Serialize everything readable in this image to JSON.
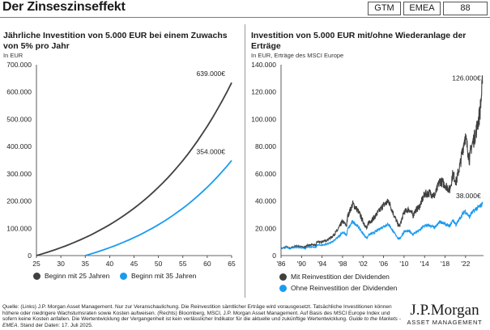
{
  "header": {
    "title": "Der Zinseszinseffekt",
    "tags": [
      "GTM",
      "EMEA",
      "88"
    ]
  },
  "colors": {
    "dark": "#404040",
    "blue": "#1a9bf0"
  },
  "chart_data": [
    {
      "type": "line",
      "title": "Jährliche Investition von 5.000 EUR bei einem Zuwachs von 5% pro Jahr",
      "subtitle": "In EUR",
      "xlim": [
        25,
        65
      ],
      "ylim": [
        0,
        700000
      ],
      "x_ticks": [
        "25",
        "30",
        "35",
        "40",
        "45",
        "50",
        "55",
        "60",
        "65"
      ],
      "y_ticks": [
        "0",
        "100.000",
        "200.000",
        "300.000",
        "400.000",
        "500.000",
        "600.000",
        "700.000"
      ],
      "series": [
        {
          "name": "Beginn mit 25 Jahren",
          "color": "#404040",
          "start_age": 25,
          "annual": 5000,
          "rate": 0.05,
          "end_label": "639.000€"
        },
        {
          "name": "Beginn mit 35 Jahren",
          "color": "#1a9bf0",
          "start_age": 35,
          "annual": 5000,
          "rate": 0.05,
          "end_label": "354.000€"
        }
      ],
      "annotations": [
        "639.000€",
        "354.000€"
      ]
    },
    {
      "type": "line",
      "title": "Investition von 5.000 EUR mit/ohne Wiederanlage der Erträge",
      "subtitle": "In EUR, Erträge des MSCI Europe",
      "xlim": [
        1986,
        2025.5
      ],
      "ylim": [
        0,
        140000
      ],
      "x_ticks": [
        "'86",
        "'90",
        "'94",
        "'98",
        "'02",
        "'06",
        "'10",
        "'14",
        "'18",
        "'22"
      ],
      "y_ticks": [
        "0",
        "20.000",
        "40.000",
        "60.000",
        "80.000",
        "100.000",
        "120.000",
        "140.000"
      ],
      "series": [
        {
          "name": "Mit Reinvestition der Dividenden",
          "color": "#404040",
          "x": [
            1986,
            1987,
            1987.8,
            1988,
            1989,
            1990,
            1990.8,
            1991,
            1992,
            1992.8,
            1993,
            1994,
            1995,
            1996,
            1997,
            1998,
            1998.8,
            1999,
            2000,
            2001,
            2002,
            2002.8,
            2003,
            2004,
            2005,
            2006,
            2007,
            2008,
            2008.9,
            2009.2,
            2010,
            2011,
            2011.8,
            2012,
            2013,
            2014,
            2015,
            2016,
            2017,
            2018,
            2018.9,
            2019.5,
            2020.2,
            2020.5,
            2021,
            2021.9,
            2022.8,
            2023,
            2024,
            2024.8,
            2025.3
          ],
          "y": [
            5000,
            6500,
            5200,
            6000,
            7000,
            6500,
            6000,
            7200,
            8000,
            7500,
            10000,
            10000,
            11500,
            14000,
            18500,
            25000,
            22000,
            29000,
            38000,
            33000,
            25000,
            19500,
            24000,
            27000,
            32000,
            37000,
            40000,
            30000,
            22000,
            22000,
            32000,
            34000,
            29000,
            32000,
            36000,
            45000,
            46000,
            44000,
            55000,
            52000,
            48000,
            60000,
            54000,
            60000,
            68000,
            88000,
            70000,
            78000,
            90000,
            105000,
            126000
          ],
          "end_label": "126.000€"
        },
        {
          "name": "Ohne Reinvestition der Dividenden",
          "color": "#1a9bf0",
          "x": [
            1986,
            1987,
            1987.8,
            1988,
            1989,
            1990,
            1990.8,
            1991,
            1992,
            1992.8,
            1993,
            1994,
            1995,
            1996,
            1997,
            1998,
            1998.8,
            1999,
            2000,
            2001,
            2002,
            2002.8,
            2003,
            2004,
            2005,
            2006,
            2007,
            2008,
            2008.9,
            2009.2,
            2010,
            2011,
            2011.8,
            2012,
            2013,
            2014,
            2015,
            2016,
            2017,
            2018,
            2018.9,
            2019.5,
            2020.2,
            2020.5,
            2021,
            2021.9,
            2022.8,
            2023,
            2024,
            2024.8,
            2025.3
          ],
          "y": [
            5000,
            6300,
            4800,
            5500,
            6200,
            5700,
            5200,
            6000,
            6500,
            6000,
            7800,
            7600,
            8500,
            10000,
            13000,
            17000,
            15000,
            19500,
            25000,
            21500,
            16000,
            12500,
            15000,
            16500,
            19000,
            21500,
            23000,
            17000,
            12500,
            12500,
            17500,
            18000,
            15500,
            16500,
            18500,
            22000,
            22000,
            20500,
            25000,
            23000,
            21500,
            26000,
            22500,
            25000,
            28000,
            33000,
            28000,
            30500,
            34000,
            36000,
            38000
          ],
          "end_label": "38.000€"
        }
      ],
      "annotations": [
        "126.000€",
        "38.000€"
      ]
    }
  ],
  "footer": {
    "source_1": "Quelle: (Links) J.P. Morgan Asset Management. Nur zur Veranschaulichung. Die Reinvestition sämtlicher Erträge wird vorausgesetzt. Tatsächliche Investitionen können höhere oder niedrigere Wachstumsraten sowie Kosten aufweisen. (Rechts) Bloomberg, MSCI, J.P. Morgan Asset Management. Auf Basis des MSCI Europe Index und sofern keine Kosten anfallen. Die Wertentwicklung der Vergangenheit ist kein verlässlicher Indikator für die aktuelle und zukünftige Wertentwicklung.",
    "guide": "Guide to the Markets - EMEA",
    "source_2": ". Stand der Daten: 17. Juli 2025.",
    "logo_main": "J.P.Morgan",
    "logo_sub": "ASSET MANAGEMENT"
  }
}
